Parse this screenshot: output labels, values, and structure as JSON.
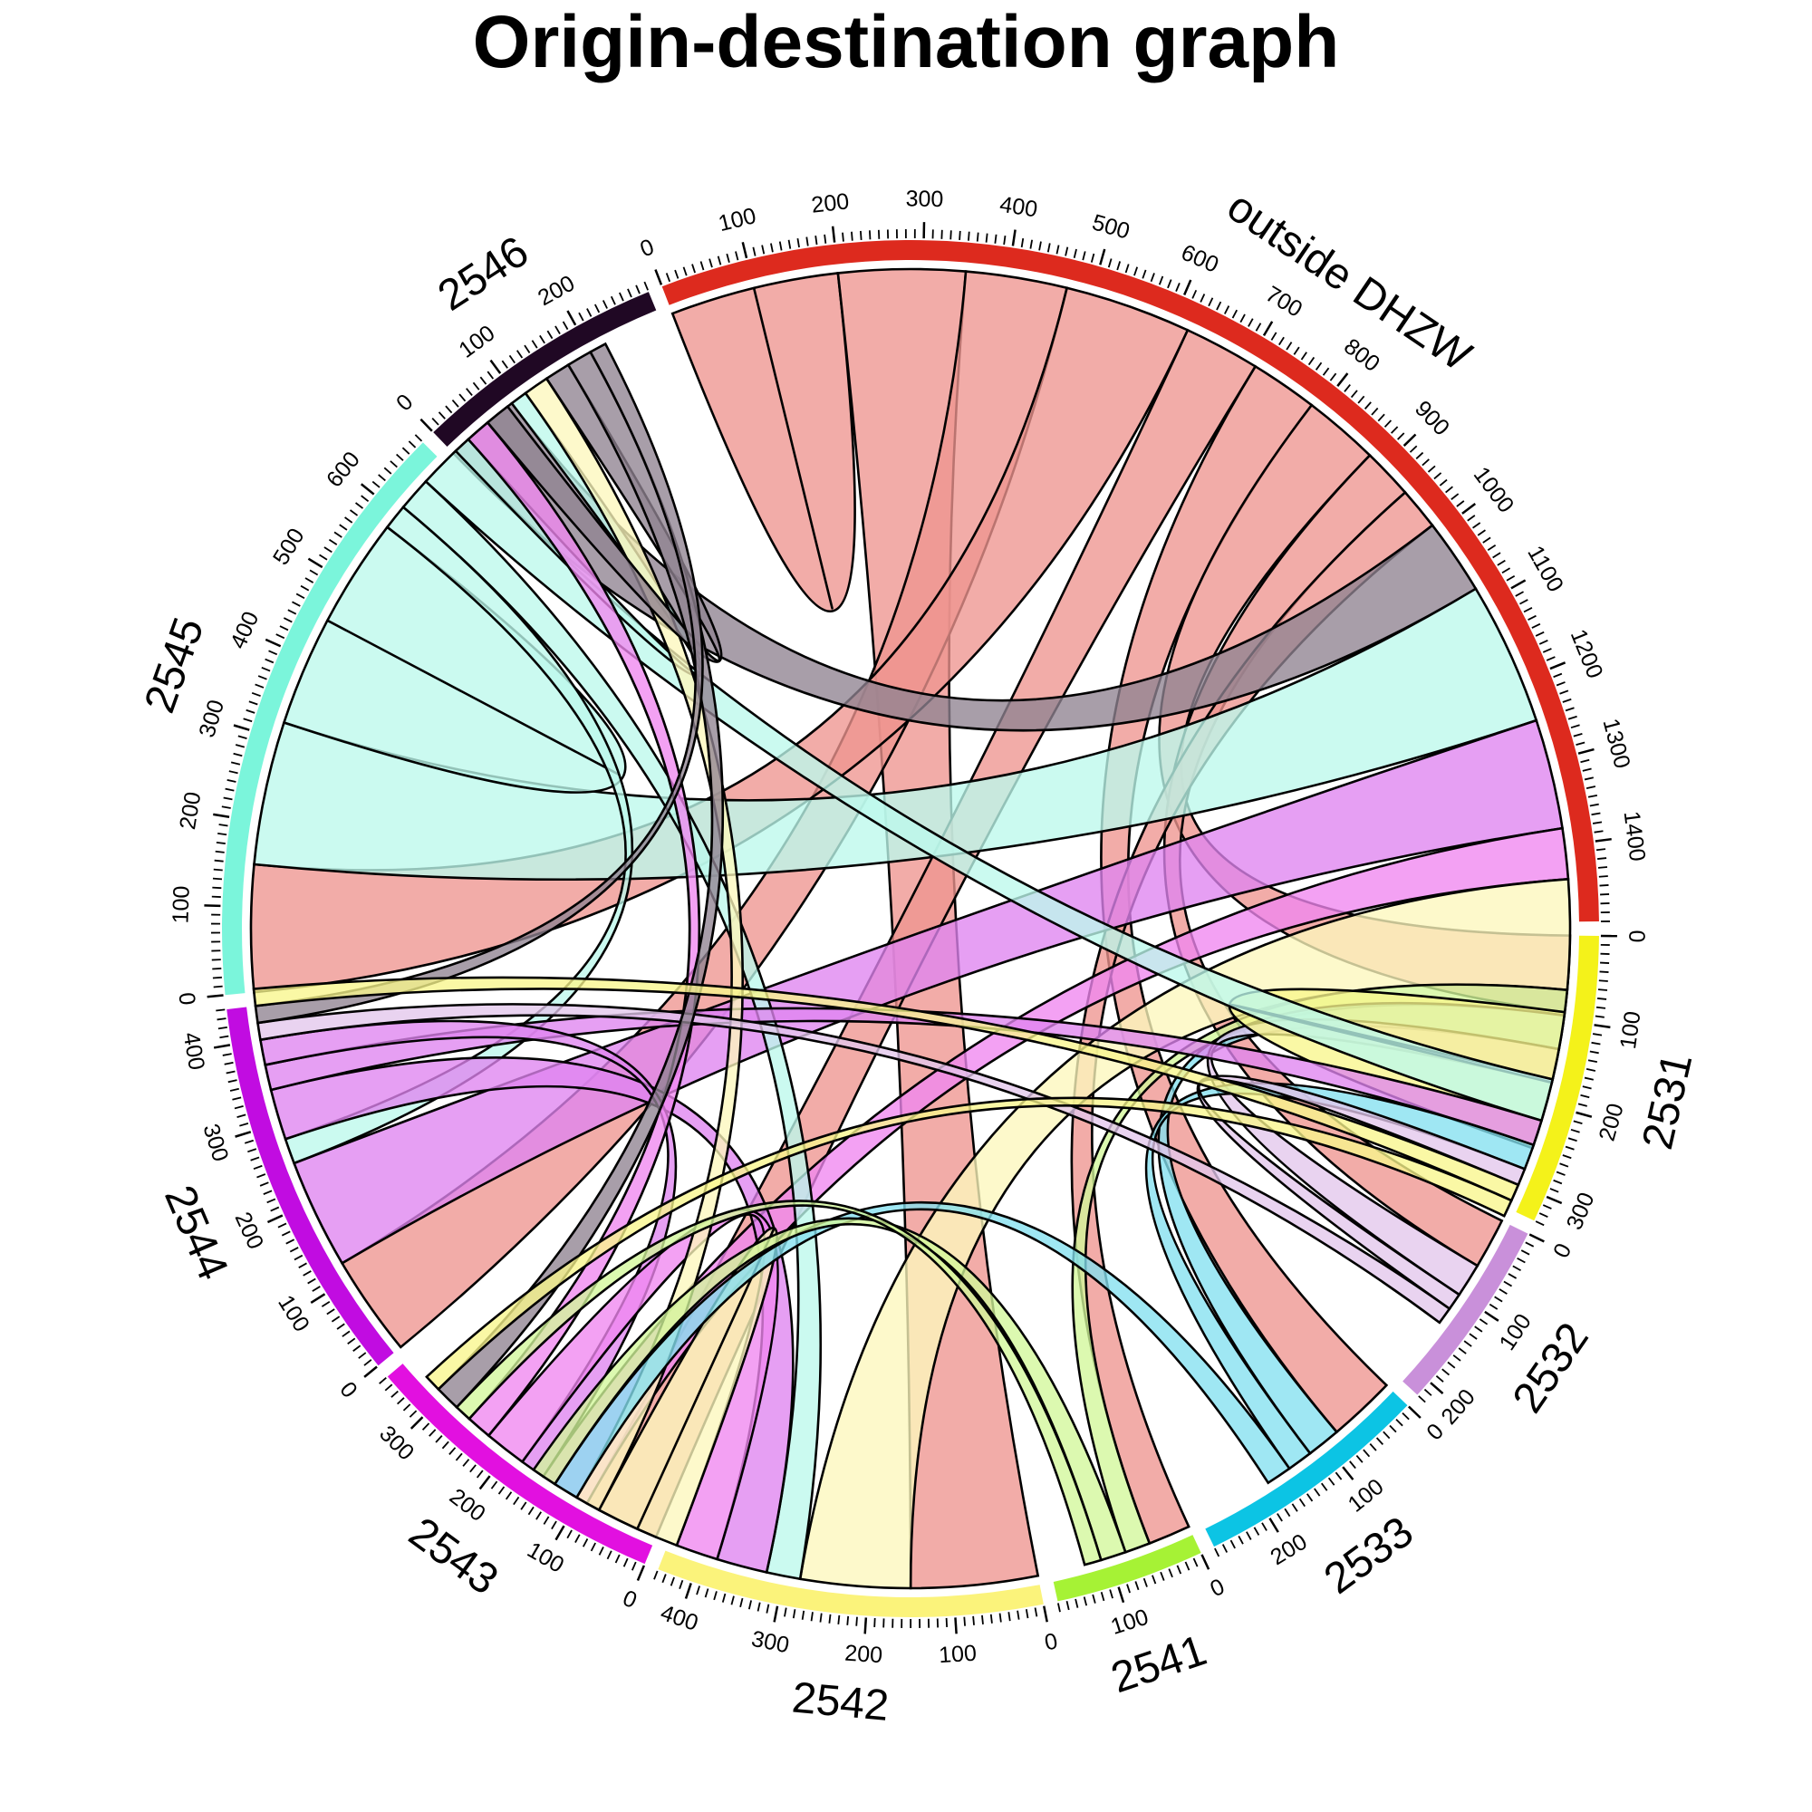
{
  "chart_data": {
    "type": "chord",
    "title": "Origin-destination graph",
    "sectors": [
      {
        "name": "outside DHZW",
        "total": 1490,
        "tick_step": 100,
        "color": "#DD2A1E",
        "ribbon_color": "#EE958F"
      },
      {
        "name": "2531",
        "total": 330,
        "tick_step": 100,
        "color": "#F4F21A",
        "ribbon_color": "#F8F68C"
      },
      {
        "name": "2532",
        "total": 220,
        "tick_step": 100,
        "color": "#C990DA",
        "ribbon_color": "#E3C6EC"
      },
      {
        "name": "2533",
        "total": 270,
        "tick_step": 100,
        "color": "#0CC4E4",
        "ribbon_color": "#84E0F0"
      },
      {
        "name": "2541",
        "total": 170,
        "tick_step": 100,
        "color": "#A6F235",
        "ribbon_color": "#D2F79A"
      },
      {
        "name": "2542",
        "total": 440,
        "tick_step": 100,
        "color": "#FBF37B",
        "ribbon_color": "#FCF7BC"
      },
      {
        "name": "2543",
        "total": 360,
        "tick_step": 100,
        "color": "#E210E0",
        "ribbon_color": "#F086EF"
      },
      {
        "name": "2544",
        "total": 440,
        "tick_step": 100,
        "color": "#C10CE1",
        "ribbon_color": "#DF84EF"
      },
      {
        "name": "2545",
        "total": 680,
        "tick_step": 100,
        "color": "#7BF5DB",
        "ribbon_color": "#BDF9EC"
      },
      {
        "name": "2546",
        "total": 290,
        "tick_step": 100,
        "color": "#200824",
        "ribbon_color": "#8F8391"
      }
    ],
    "flows": [
      {
        "from": "outside DHZW",
        "to": "outside DHZW",
        "value": 100
      },
      {
        "from": "outside DHZW",
        "to": "2542",
        "value": 150
      },
      {
        "from": "outside DHZW",
        "to": "2544",
        "value": 120
      },
      {
        "from": "outside DHZW",
        "to": "2545",
        "value": 150
      },
      {
        "from": "outside DHZW",
        "to": "2543",
        "value": 90
      },
      {
        "from": "outside DHZW",
        "to": "2533",
        "value": 80
      },
      {
        "from": "outside DHZW",
        "to": "2531",
        "value": 90
      },
      {
        "from": "outside DHZW",
        "to": "2532",
        "value": 60
      },
      {
        "from": "outside DHZW",
        "to": "2541",
        "value": 50
      },
      {
        "from": "2546",
        "to": "outside DHZW",
        "value": 90
      },
      {
        "from": "2545",
        "to": "outside DHZW",
        "value": 170
      },
      {
        "from": "2544",
        "to": "outside DHZW",
        "value": 130
      },
      {
        "from": "2543",
        "to": "outside DHZW",
        "value": 60
      },
      {
        "from": "2542",
        "to": "outside DHZW",
        "value": 130
      },
      {
        "from": "2541",
        "to": "outside DHZW",
        "value": 30
      },
      {
        "from": "2533",
        "to": "outside DHZW",
        "value": 40
      },
      {
        "from": "2532",
        "to": "outside DHZW",
        "value": 40
      },
      {
        "from": "2531",
        "to": "outside DHZW",
        "value": 80
      },
      {
        "from": "2545",
        "to": "2545",
        "value": 130
      },
      {
        "from": "2545",
        "to": "2544",
        "value": 30
      },
      {
        "from": "2545",
        "to": "2542",
        "value": 40
      },
      {
        "from": "2545",
        "to": "2531",
        "value": 50
      },
      {
        "from": "2545",
        "to": "2546",
        "value": 20
      },
      {
        "from": "2544",
        "to": "2542",
        "value": 60
      },
      {
        "from": "2544",
        "to": "2531",
        "value": 30
      },
      {
        "from": "2544",
        "to": "2543",
        "value": 30
      },
      {
        "from": "2543",
        "to": "2542",
        "value": 50
      },
      {
        "from": "2543",
        "to": "2545",
        "value": 30
      },
      {
        "from": "2542",
        "to": "2542",
        "value": 50
      },
      {
        "from": "2542",
        "to": "2546",
        "value": 30
      },
      {
        "from": "2533",
        "to": "2531",
        "value": 30
      },
      {
        "from": "2533",
        "to": "2542",
        "value": 30
      },
      {
        "from": "2532",
        "to": "2531",
        "value": 20
      },
      {
        "from": "2532",
        "to": "2544",
        "value": 20
      },
      {
        "from": "2541",
        "to": "2542",
        "value": 30
      },
      {
        "from": "2541",
        "to": "2543",
        "value": 20
      },
      {
        "from": "2546",
        "to": "2545",
        "value": 30
      },
      {
        "from": "2546",
        "to": "2543",
        "value": 30
      },
      {
        "from": "2546",
        "to": "2544",
        "value": 20
      },
      {
        "from": "2531",
        "to": "2544",
        "value": 20
      },
      {
        "from": "2531",
        "to": "2543",
        "value": 20
      }
    ]
  }
}
